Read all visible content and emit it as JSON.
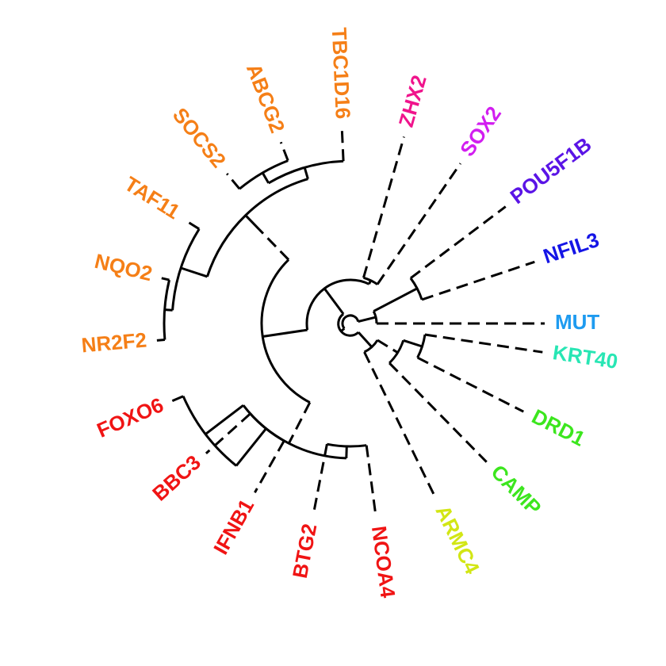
{
  "dendrogram": {
    "leaves": [
      {
        "label": "MUT",
        "color": "#1E9BF0"
      },
      {
        "label": "NFIL3",
        "color": "#1414E6"
      },
      {
        "label": "POU5F1B",
        "color": "#5A14E6"
      },
      {
        "label": "SOX2",
        "color": "#D21EF0"
      },
      {
        "label": "ZHX2",
        "color": "#F0148C"
      },
      {
        "label": "TBC1D16",
        "color": "#F57F17"
      },
      {
        "label": "ABCG2",
        "color": "#F57F17"
      },
      {
        "label": "SOCS2",
        "color": "#F57F17"
      },
      {
        "label": "TAF11",
        "color": "#F57F17"
      },
      {
        "label": "NQO2",
        "color": "#F57F17"
      },
      {
        "label": "NR2F2",
        "color": "#F57F17"
      },
      {
        "label": "FOXO6",
        "color": "#F01414"
      },
      {
        "label": "BBC3",
        "color": "#F01414"
      },
      {
        "label": "IFNB1",
        "color": "#F01414"
      },
      {
        "label": "BTG2",
        "color": "#F01414"
      },
      {
        "label": "NCOA4",
        "color": "#F01414"
      },
      {
        "label": "ARMC4",
        "color": "#D2E614"
      },
      {
        "label": "CAMP",
        "color": "#3CE61E"
      },
      {
        "label": "DRD1",
        "color": "#3CE61E"
      },
      {
        "label": "KRT40",
        "color": "#28E6B4"
      }
    ]
  }
}
